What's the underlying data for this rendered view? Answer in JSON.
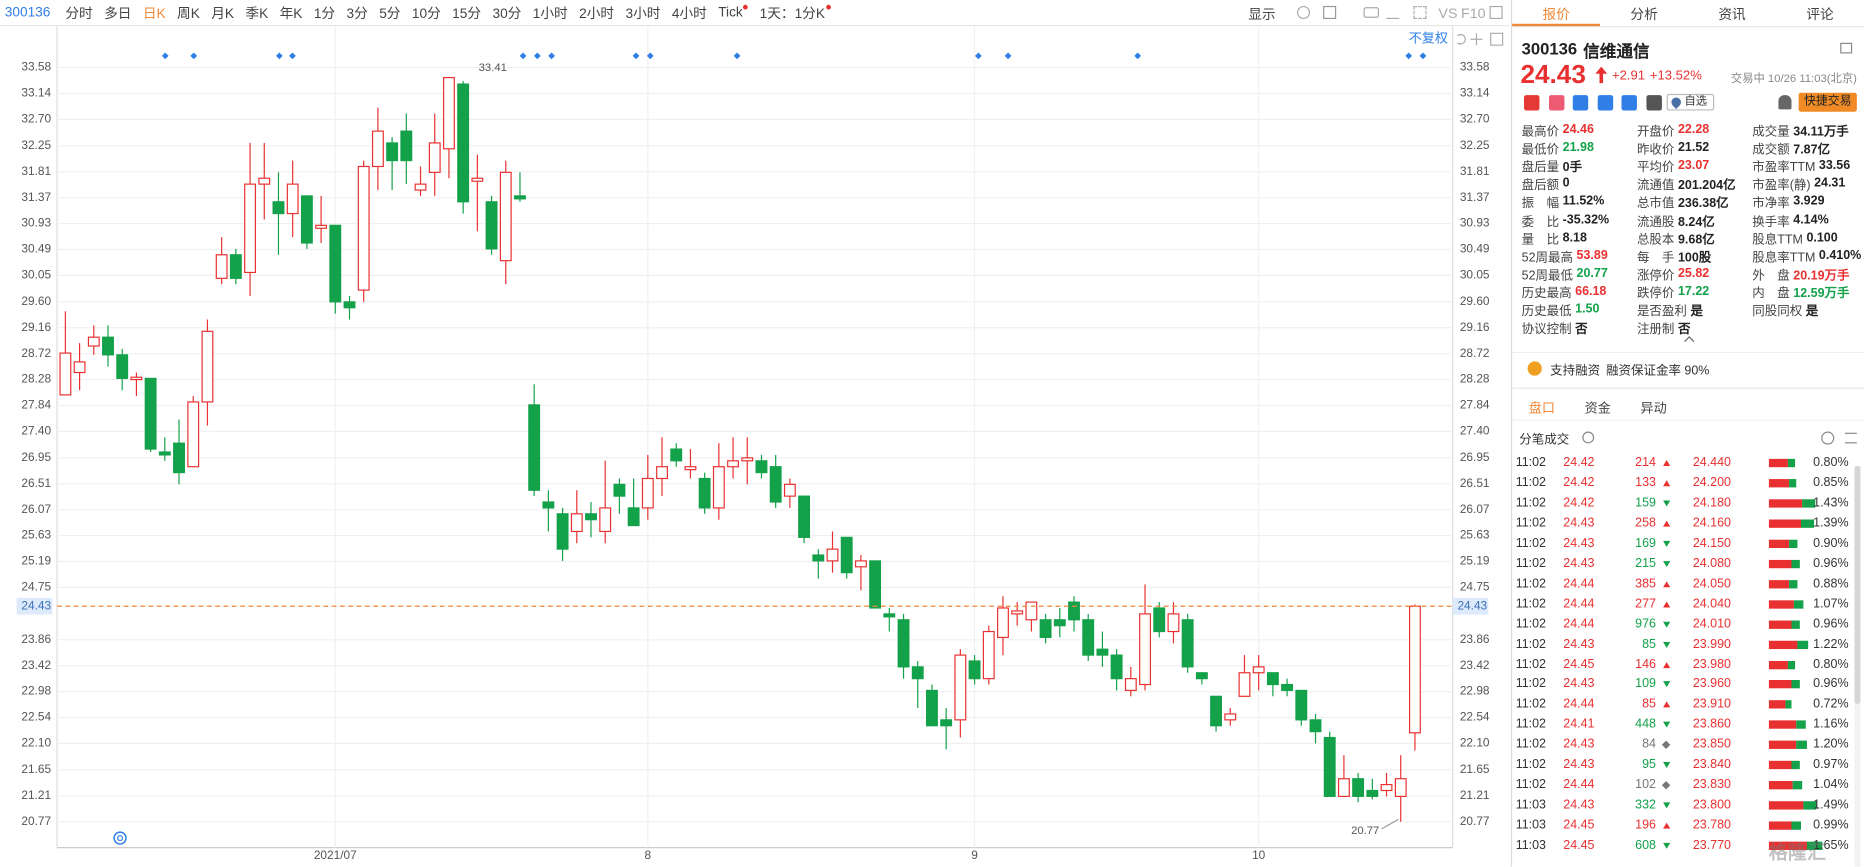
{
  "toolbar": {
    "code": "300136",
    "periods": [
      "分时",
      "多日",
      "日K",
      "周K",
      "月K",
      "季K",
      "年K",
      "1分",
      "3分",
      "5分",
      "10分",
      "15分",
      "30分",
      "1小时",
      "2小时",
      "3小时",
      "4小时",
      "Tick"
    ],
    "active_period": 2,
    "range": "1天：1分K",
    "display": "显示",
    "right": [
      "VS",
      "F10"
    ]
  },
  "chart_data": {
    "type": "candlestick",
    "adjust": "不复权",
    "categories": [
      null,
      null,
      null,
      null,
      null,
      null,
      null,
      null,
      null,
      null,
      null,
      null,
      null,
      null,
      null,
      null,
      null,
      null,
      null,
      "2021/07",
      null,
      null,
      null,
      null,
      null,
      null,
      null,
      null,
      null,
      null,
      null,
      null,
      null,
      null,
      null,
      null,
      null,
      null,
      null,
      null,
      null,
      "8",
      null,
      null,
      null,
      null,
      null,
      null,
      null,
      null,
      null,
      null,
      null,
      null,
      null,
      null,
      null,
      null,
      null,
      null,
      null,
      null,
      null,
      null,
      "9",
      null,
      null,
      null,
      null,
      null,
      null,
      null,
      null,
      null,
      null,
      null,
      null,
      null,
      null,
      null,
      null,
      null,
      null,
      null,
      "10",
      null,
      null,
      null,
      null,
      null,
      null,
      null,
      null,
      null,
      null,
      null
    ],
    "ohlc": {
      "open": [
        28.02,
        28.4,
        28.85,
        29.0,
        28.7,
        28.28,
        28.3,
        27.05,
        27.2,
        26.8,
        27.9,
        30.0,
        30.4,
        30.1,
        31.6,
        31.3,
        31.1,
        31.4,
        30.85,
        30.9,
        29.6,
        29.8,
        31.9,
        32.3,
        32.5,
        31.5,
        31.8,
        32.2,
        33.3,
        31.65,
        31.3,
        30.3,
        31.4,
        27.85,
        26.2,
        26.0,
        25.7,
        26.0,
        25.7,
        26.5,
        26.1,
        26.1,
        26.6,
        27.1,
        26.75,
        26.6,
        26.1,
        26.8,
        26.9,
        26.9,
        26.8,
        26.3,
        26.3,
        25.3,
        25.2,
        25.6,
        25.1,
        25.2,
        24.3,
        24.2,
        23.4,
        23.0,
        22.5,
        22.5,
        23.5,
        23.2,
        23.9,
        24.3,
        24.2,
        24.2,
        24.2,
        24.5,
        24.2,
        23.7,
        23.6,
        23.0,
        23.1,
        24.4,
        24.0,
        24.2,
        23.3,
        22.9,
        22.5,
        22.9,
        23.3,
        23.3,
        23.1,
        23.0,
        22.5,
        22.2,
        21.2,
        21.5,
        21.3,
        21.3,
        21.2,
        22.28
      ],
      "high": [
        29.44,
        28.9,
        29.2,
        29.2,
        28.8,
        28.4,
        28.3,
        27.3,
        27.6,
        28.0,
        29.3,
        30.7,
        30.5,
        32.3,
        32.3,
        31.8,
        32.0,
        31.4,
        31.4,
        30.9,
        29.7,
        32.0,
        32.9,
        32.4,
        32.8,
        31.9,
        32.8,
        33.41,
        33.35,
        32.1,
        31.4,
        32.0,
        31.8,
        28.2,
        26.4,
        26.1,
        26.4,
        26.2,
        26.9,
        26.6,
        26.6,
        27.0,
        27.3,
        27.2,
        27.1,
        26.7,
        27.2,
        27.3,
        27.3,
        27.0,
        27.0,
        26.6,
        26.3,
        25.4,
        25.7,
        25.6,
        25.3,
        25.2,
        24.4,
        24.3,
        23.5,
        23.1,
        22.7,
        23.7,
        23.6,
        24.1,
        24.6,
        24.5,
        24.5,
        24.3,
        24.4,
        24.6,
        24.3,
        24.0,
        23.7,
        23.4,
        24.8,
        24.5,
        24.5,
        24.3,
        23.3,
        22.9,
        22.7,
        23.6,
        23.6,
        23.3,
        23.2,
        23.0,
        22.6,
        22.3,
        21.9,
        21.6,
        21.5,
        21.6,
        21.9,
        24.46
      ],
      "low": [
        28.02,
        28.1,
        28.7,
        28.5,
        28.1,
        28.0,
        27.05,
        26.9,
        26.5,
        26.8,
        27.5,
        29.9,
        29.9,
        29.7,
        31.0,
        30.4,
        30.7,
        30.5,
        30.6,
        29.4,
        29.3,
        29.6,
        31.5,
        31.5,
        31.6,
        31.4,
        31.4,
        31.7,
        31.1,
        30.8,
        30.4,
        29.9,
        31.3,
        26.3,
        25.7,
        25.2,
        25.5,
        25.6,
        25.5,
        26.0,
        25.8,
        25.9,
        26.3,
        26.8,
        26.6,
        26.0,
        25.9,
        26.6,
        26.5,
        26.6,
        26.1,
        26.1,
        25.5,
        24.9,
        25.0,
        24.9,
        24.7,
        24.4,
        24.0,
        23.2,
        22.7,
        22.4,
        22.0,
        22.2,
        23.1,
        23.1,
        23.6,
        24.1,
        24.0,
        23.8,
        23.9,
        24.0,
        23.5,
        23.4,
        23.0,
        22.9,
        23.0,
        23.9,
        23.8,
        23.3,
        23.1,
        22.3,
        22.4,
        22.9,
        23.0,
        22.9,
        22.9,
        22.4,
        22.1,
        21.2,
        21.2,
        21.1,
        21.15,
        21.2,
        20.77,
        21.98
      ],
      "close": [
        28.73,
        28.58,
        29.0,
        28.7,
        28.3,
        28.32,
        27.1,
        27.0,
        26.7,
        27.9,
        29.1,
        30.4,
        30.0,
        31.6,
        31.7,
        31.1,
        31.6,
        30.6,
        30.9,
        29.6,
        29.5,
        31.9,
        32.5,
        32.0,
        32.0,
        31.6,
        32.3,
        33.41,
        31.3,
        31.7,
        30.5,
        31.8,
        31.35,
        26.4,
        26.1,
        25.4,
        26.0,
        25.9,
        26.1,
        26.3,
        25.8,
        26.6,
        26.8,
        26.9,
        26.8,
        26.1,
        26.8,
        26.9,
        26.95,
        26.7,
        26.2,
        26.5,
        25.6,
        25.2,
        25.4,
        25.0,
        25.2,
        24.4,
        24.25,
        23.4,
        23.2,
        22.4,
        22.4,
        23.6,
        23.2,
        24.0,
        24.4,
        24.35,
        24.5,
        23.9,
        24.1,
        24.2,
        23.6,
        23.6,
        23.2,
        23.2,
        24.3,
        24.0,
        24.3,
        23.4,
        23.2,
        22.4,
        22.6,
        23.3,
        23.4,
        23.1,
        23.0,
        22.5,
        22.3,
        21.2,
        21.5,
        21.2,
        21.2,
        21.4,
        21.5,
        24.43
      ]
    },
    "up_color": "#e93030",
    "down_color": "#13a14a",
    "ylim": [
      20.33,
      33.92
    ],
    "yticks": [
      33.58,
      33.14,
      {
        "value": 32.7,
        "label": "32.70"
      },
      32.25,
      31.81,
      31.37,
      30.93,
      30.49,
      30.05,
      {
        "value": 29.6,
        "label": "29.60"
      },
      29.16,
      28.72,
      28.28,
      27.84,
      {
        "value": 27.4,
        "label": "27.40"
      },
      26.95,
      26.51,
      26.07,
      25.63,
      25.19,
      24.75,
      23.86,
      23.42,
      22.98,
      22.54,
      {
        "value": 22.1,
        "label": "22.10"
      },
      21.65,
      21.21,
      20.77
    ],
    "grid": true,
    "last_price": 24.43,
    "last_color": "#f0883a",
    "annotations": {
      "high": 33.41,
      "low": 20.77
    }
  },
  "quote_panel": {
    "tabs": [
      "报价",
      "分析",
      "资讯",
      "评论"
    ],
    "code": "300136",
    "name": "信维通信",
    "price": "24.43",
    "change": "+2.91",
    "change_pct": "+13.52%",
    "status": "交易中 10/26 11:03(北京)",
    "buttons": [
      "自选",
      "快捷交易"
    ],
    "stats": [
      [
        [
          "最高价",
          "24.46",
          "up"
        ],
        [
          "开盘价",
          "22.28",
          "up"
        ],
        [
          "成交量",
          "34.11万手",
          "flat"
        ]
      ],
      [
        [
          "最低价",
          "21.98",
          "down"
        ],
        [
          "昨收价",
          "21.52",
          "flat"
        ],
        [
          "成交额",
          "7.87亿",
          "flat"
        ]
      ],
      [
        [
          "盘后量",
          "0手",
          "flat"
        ],
        [
          "平均价",
          "23.07",
          "up"
        ],
        [
          "市盈率TTM",
          "33.56",
          "flat"
        ]
      ],
      [
        [
          "盘后额",
          "0",
          "flat"
        ],
        [
          "流通值",
          "201.204亿",
          "flat"
        ],
        [
          "市盈率(静)",
          "24.31",
          "flat"
        ]
      ],
      [
        [
          "振　幅",
          "11.52%",
          "flat"
        ],
        [
          "总市值",
          "236.38亿",
          "flat"
        ],
        [
          "市净率",
          "3.929",
          "flat"
        ]
      ],
      [
        [
          "委　比",
          "-35.32%",
          "flat"
        ],
        [
          "流通股",
          "8.24亿",
          "flat"
        ],
        [
          "换手率",
          "4.14%",
          "flat"
        ]
      ],
      [
        [
          "量　比",
          "8.18",
          "flat"
        ],
        [
          "总股本",
          "9.68亿",
          "flat"
        ],
        [
          "股息TTM",
          "0.100",
          "flat"
        ]
      ],
      [
        [
          "52周最高",
          "53.89",
          "up"
        ],
        [
          "每　手",
          "100股",
          "flat"
        ],
        [
          "股息率TTM",
          "0.410%",
          "flat"
        ]
      ],
      [
        [
          "52周最低",
          "20.77",
          "down"
        ],
        [
          "涨停价",
          "25.82",
          "up"
        ],
        [
          "外　盘",
          "20.19万手",
          "up"
        ]
      ],
      [
        [
          "历史最高",
          "66.18",
          "up"
        ],
        [
          "跌停价",
          "17.22",
          "down"
        ],
        [
          "内　盘",
          "12.59万手",
          "down"
        ]
      ],
      [
        [
          "历史最低",
          "1.50",
          "down"
        ],
        [
          "是否盈利",
          "是",
          "flat"
        ],
        [
          "同股同权",
          "是",
          "flat"
        ]
      ],
      [
        [
          "协议控制",
          "否",
          "flat"
        ],
        [
          "注册制",
          "否",
          "flat"
        ]
      ]
    ],
    "margin": [
      "支持融资",
      "融资保证金率 90%"
    ],
    "sub_tabs": [
      "盘口",
      "资金",
      "异动"
    ],
    "ticks_title": "分笔成交",
    "trades": [
      [
        "11:02",
        "24.42",
        "214",
        "up"
      ],
      [
        "11:02",
        "24.42",
        "133",
        "up"
      ],
      [
        "11:02",
        "24.42",
        "159",
        "down"
      ],
      [
        "11:02",
        "24.43",
        "258",
        "up"
      ],
      [
        "11:02",
        "24.43",
        "169",
        "down"
      ],
      [
        "11:02",
        "24.43",
        "215",
        "down"
      ],
      [
        "11:02",
        "24.44",
        "385",
        "up"
      ],
      [
        "11:02",
        "24.44",
        "277",
        "up"
      ],
      [
        "11:02",
        "24.44",
        "976",
        "down"
      ],
      [
        "11:02",
        "24.43",
        "85",
        "down"
      ],
      [
        "11:02",
        "24.45",
        "146",
        "up"
      ],
      [
        "11:02",
        "24.43",
        "109",
        "down"
      ],
      [
        "11:02",
        "24.44",
        "85",
        "up"
      ],
      [
        "11:02",
        "24.41",
        "448",
        "down"
      ],
      [
        "11:02",
        "24.43",
        "84",
        "even"
      ],
      [
        "11:02",
        "24.43",
        "95",
        "down"
      ],
      [
        "11:02",
        "24.44",
        "102",
        "even"
      ],
      [
        "11:03",
        "24.43",
        "332",
        "down"
      ],
      [
        "11:03",
        "24.45",
        "196",
        "up"
      ],
      [
        "11:03",
        "24.45",
        "608",
        "down"
      ]
    ],
    "price_levels": [
      [
        "24.440",
        "0.80%"
      ],
      [
        "24.200",
        "0.85%"
      ],
      [
        "24.180",
        "1.43%"
      ],
      [
        "24.160",
        "1.39%"
      ],
      [
        "24.150",
        "0.90%"
      ],
      [
        "24.080",
        "0.96%"
      ],
      [
        "24.050",
        "0.88%"
      ],
      [
        "24.040",
        "1.07%"
      ],
      [
        "24.010",
        "0.96%"
      ],
      [
        "23.990",
        "1.22%"
      ],
      [
        "23.980",
        "0.80%"
      ],
      [
        "23.960",
        "0.96%"
      ],
      [
        "23.910",
        "0.72%"
      ],
      [
        "23.860",
        "1.16%"
      ],
      [
        "23.850",
        "1.20%"
      ],
      [
        "23.840",
        "0.97%"
      ],
      [
        "23.830",
        "1.04%"
      ],
      [
        "23.800",
        "1.49%"
      ],
      [
        "23.780",
        "0.99%"
      ],
      [
        "23.770",
        "1.65%"
      ]
    ],
    "watermark": "格隆汇"
  }
}
